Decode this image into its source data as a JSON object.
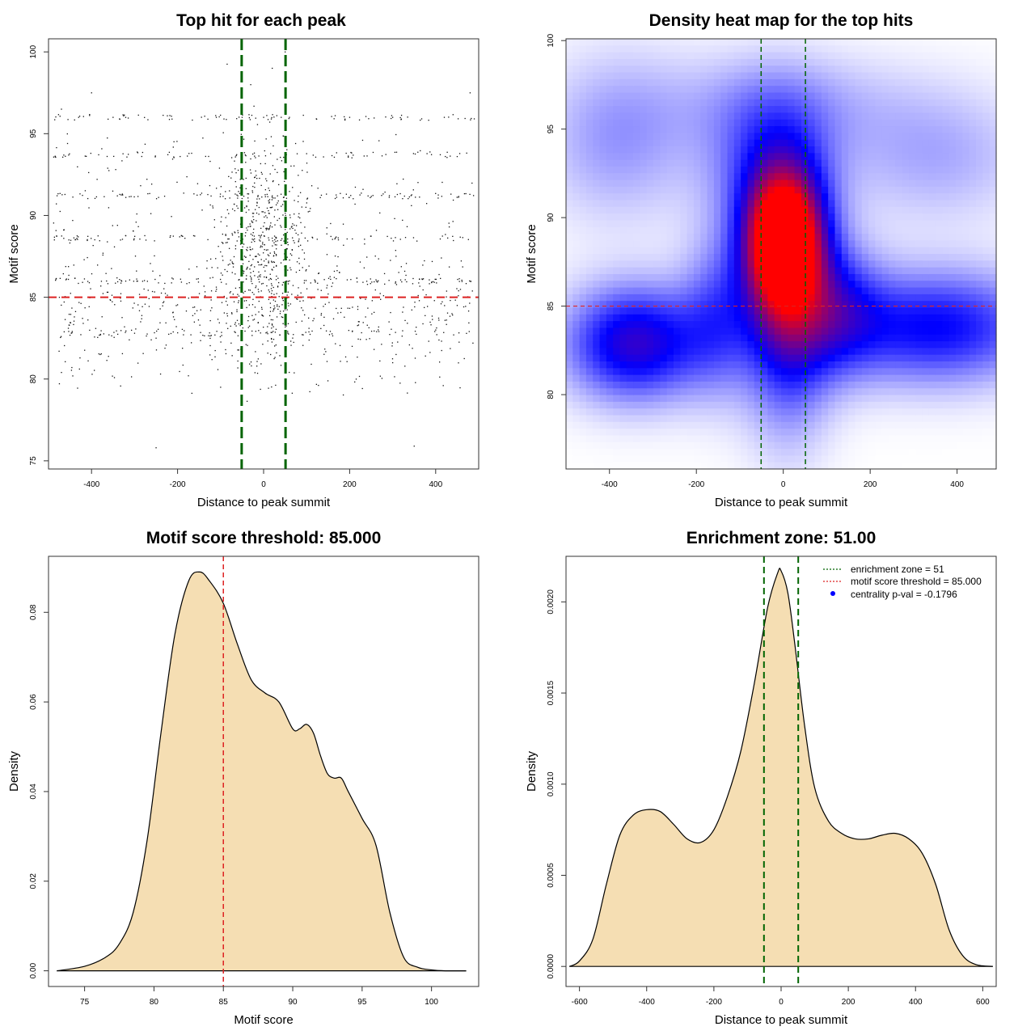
{
  "chart_data": [
    {
      "id": "scatter",
      "type": "scatter",
      "title": "Top hit for each peak",
      "xlabel": "Distance to peak summit",
      "ylabel": "Motif score",
      "xlim": [
        -500,
        500
      ],
      "ylim": [
        74.5,
        100.8
      ],
      "xticks": [
        -400,
        -200,
        0,
        200,
        400
      ],
      "yticks": [
        75,
        80,
        85,
        90,
        95,
        100
      ],
      "hline": {
        "y": 85,
        "color": "#dd2222"
      },
      "vlines": {
        "x": [
          -51,
          51
        ],
        "color": "#006400"
      },
      "sample_points": [
        [
          -470,
          96.5
        ],
        [
          -430,
          96
        ],
        [
          -350,
          96
        ],
        [
          -110,
          96
        ],
        [
          -50,
          96
        ],
        [
          0,
          96
        ],
        [
          60,
          96
        ],
        [
          200,
          96
        ],
        [
          300,
          96
        ],
        [
          420,
          96
        ],
        [
          -340,
          91.2
        ],
        [
          -60,
          91.2
        ],
        [
          20,
          91.2
        ],
        [
          -10,
          88.5
        ],
        [
          30,
          88.2
        ],
        [
          10,
          87.6
        ],
        [
          -30,
          86.5
        ],
        [
          60,
          86
        ],
        [
          -300,
          82.8
        ],
        [
          -250,
          82.5
        ],
        [
          -440,
          83.8
        ],
        [
          400,
          83
        ],
        [
          450,
          84.5
        ],
        [
          150,
          85.2
        ],
        [
          -160,
          84
        ],
        [
          -380,
          81.5
        ],
        [
          300,
          81
        ],
        [
          -100,
          79.5
        ],
        [
          20,
          99
        ],
        [
          50,
          100
        ],
        [
          -30,
          98
        ],
        [
          480,
          97.5
        ],
        [
          -400,
          97.5
        ],
        [
          -250,
          75.8
        ],
        [
          350,
          75.9
        ]
      ]
    },
    {
      "id": "heatmap",
      "type": "heatmap",
      "title": "Density heat map for the top hits",
      "xlabel": "Distance to peak summit",
      "ylabel": "Motif score",
      "xlim": [
        -500,
        490
      ],
      "ylim": [
        75.8,
        100.1
      ],
      "xticks": [
        -400,
        -200,
        0,
        200,
        400
      ],
      "yticks": [
        80,
        85,
        90,
        95,
        100
      ],
      "hline": {
        "y": 85,
        "color": "#dd2222"
      },
      "vlines": {
        "x": [
          -51,
          51
        ],
        "color": "#006400"
      },
      "colormap": [
        "#ffffff",
        "#0000ff",
        "#ff0000"
      ],
      "density_blobs": [
        {
          "x": 0,
          "y": 88.7,
          "sx": 60,
          "sy": 2.5,
          "w": 1.0
        },
        {
          "x": 10,
          "y": 85.5,
          "sx": 70,
          "sy": 4.5,
          "w": 0.6
        },
        {
          "x": -340,
          "y": 82.9,
          "sx": 110,
          "sy": 2.2,
          "w": 0.55
        },
        {
          "x": 350,
          "y": 83.8,
          "sx": 170,
          "sy": 2.2,
          "w": 0.45
        },
        {
          "x": 130,
          "y": 84.8,
          "sx": 70,
          "sy": 2.5,
          "w": 0.3
        },
        {
          "x": -150,
          "y": 84.5,
          "sx": 60,
          "sy": 3,
          "w": 0.25
        },
        {
          "x": -30,
          "y": 93,
          "sx": 100,
          "sy": 3,
          "w": 0.3
        },
        {
          "x": -380,
          "y": 94.5,
          "sx": 120,
          "sy": 3.2,
          "w": 0.18
        },
        {
          "x": 350,
          "y": 93.5,
          "sx": 150,
          "sy": 2.6,
          "w": 0.15
        },
        {
          "x": 0,
          "y": 96.5,
          "sx": 200,
          "sy": 2,
          "w": 0.12
        }
      ]
    },
    {
      "id": "density_score",
      "type": "area",
      "title": "Motif score threshold: 85.000",
      "xlabel": "Motif score",
      "ylabel": "Density",
      "xlim": [
        72.4,
        103.4
      ],
      "ylim": [
        -0.0035,
        0.0925
      ],
      "xticks": [
        75,
        80,
        85,
        90,
        95,
        100
      ],
      "yticks": [
        "0.00",
        "0.02",
        "0.04",
        "0.06",
        "0.08"
      ],
      "fill": "#f5deb3",
      "vline": {
        "x": 85,
        "color": "#dd2222"
      },
      "x": [
        73,
        75,
        76.5,
        77.5,
        78.5,
        79.5,
        80.5,
        81.5,
        82.5,
        83.3,
        84,
        85,
        86,
        87,
        88,
        89,
        90,
        90.5,
        91,
        91.5,
        92,
        92.5,
        93,
        93.5,
        94,
        95,
        96,
        97,
        98,
        99,
        100,
        101,
        102.5
      ],
      "values": [
        0.0,
        0.001,
        0.003,
        0.006,
        0.013,
        0.029,
        0.053,
        0.075,
        0.087,
        0.089,
        0.087,
        0.082,
        0.073,
        0.065,
        0.062,
        0.06,
        0.054,
        0.054,
        0.055,
        0.053,
        0.048,
        0.044,
        0.043,
        0.043,
        0.04,
        0.034,
        0.028,
        0.013,
        0.003,
        0.0008,
        0.0002,
        0.0,
        0.0
      ]
    },
    {
      "id": "density_distance",
      "type": "area",
      "title": "Enrichment zone: 51.00",
      "xlabel": "Distance to peak summit",
      "ylabel": "Density",
      "xlim": [
        -640,
        640
      ],
      "ylim": [
        -0.00011,
        0.00225
      ],
      "xticks": [
        -600,
        -400,
        -200,
        0,
        200,
        400,
        600
      ],
      "yticks": [
        "0.0000",
        "0.0005",
        "0.0010",
        "0.0015",
        "0.0020"
      ],
      "fill": "#f5deb3",
      "vlines": {
        "x": [
          -51,
          51
        ],
        "color": "#006400"
      },
      "x": [
        -630,
        -600,
        -560,
        -520,
        -480,
        -440,
        -400,
        -360,
        -320,
        -280,
        -240,
        -200,
        -160,
        -120,
        -80,
        -40,
        -10,
        0,
        20,
        40,
        70,
        100,
        140,
        180,
        220,
        260,
        300,
        340,
        380,
        420,
        460,
        500,
        540,
        580,
        630
      ],
      "values": [
        0.0,
        3e-05,
        0.00015,
        0.00045,
        0.00072,
        0.00083,
        0.00086,
        0.00085,
        0.00078,
        0.0007,
        0.00068,
        0.00075,
        0.00093,
        0.00118,
        0.00155,
        0.00197,
        0.00216,
        0.00217,
        0.00205,
        0.00178,
        0.00132,
        0.00098,
        0.0008,
        0.00073,
        0.0007,
        0.0007,
        0.00072,
        0.00073,
        0.0007,
        0.00062,
        0.00045,
        0.0002,
        6e-05,
        1e-05,
        0.0
      ],
      "legend": {
        "position": "top-right",
        "entries": [
          {
            "label": "enrichment zone = 51",
            "style": "dotted",
            "color": "#006400"
          },
          {
            "label": "motif score threshold = 85.000",
            "style": "dotted",
            "color": "#dd2222"
          },
          {
            "label": "centrality p-val = -0.1796",
            "style": "dot",
            "color": "#0000ff"
          }
        ]
      }
    }
  ]
}
